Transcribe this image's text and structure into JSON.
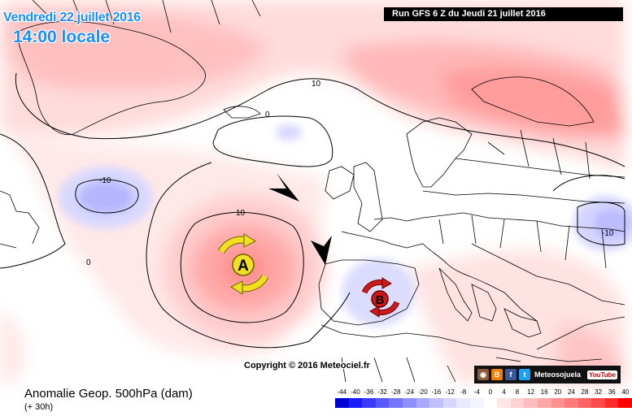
{
  "header": {
    "date": "Vendredi 22 juillet 2016",
    "time": "14:00 locale",
    "run": "Run GFS 6 Z du Jeudi 21 juillet 2016"
  },
  "map": {
    "contour_labels": [
      "10",
      "0",
      "-10",
      "10",
      "0",
      "-10"
    ],
    "high_label": "A",
    "low_label": "B",
    "copyright": "Copyright © 2016 Meteociel.fr"
  },
  "social": {
    "name": "Meteosojuela",
    "youtube": "YouTube",
    "icons": [
      "instagram-icon",
      "blogger-icon",
      "facebook-icon",
      "twitter-icon"
    ]
  },
  "footer": {
    "title": "Anomalie Geop. 500hPa (dam)",
    "subtitle": "(+ 30h)"
  },
  "legend": {
    "labels": [
      "-44",
      "-40",
      "-36",
      "-32",
      "-28",
      "-24",
      "-20",
      "-16",
      "-12",
      "-8",
      "-4",
      "0",
      "4",
      "8",
      "12",
      "16",
      "20",
      "24",
      "28",
      "32",
      "36",
      "40"
    ],
    "colors": [
      "#0000d0",
      "#1a1aff",
      "#3a3aff",
      "#5858ff",
      "#7474ff",
      "#8f8fff",
      "#a8a8ff",
      "#c0c0ff",
      "#d6d6ff",
      "#e8e8ff",
      "#f4f4ff",
      "#ffffff",
      "#ffe6e6",
      "#ffd2d2",
      "#ffbcbc",
      "#ffa6a6",
      "#ff9090",
      "#ff7a7a",
      "#ff6262",
      "#ff4848",
      "#ff2a2a",
      "#ff0000"
    ]
  },
  "colors": {
    "title_blue": "#1a8dff",
    "high_yellow": "#f0e020",
    "low_red": "#cc1a1a"
  }
}
